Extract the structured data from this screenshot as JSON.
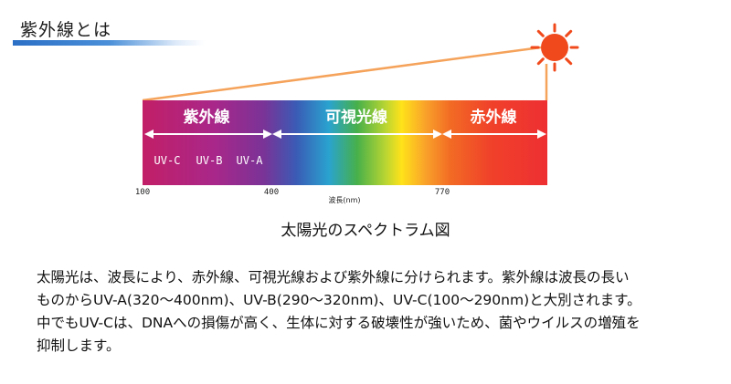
{
  "header": {
    "title": "紫外線とは"
  },
  "diagram": {
    "bands": {
      "uv": "紫外線",
      "visible": "可視光線",
      "ir": "赤外線"
    },
    "uv_types": [
      "UV-C",
      "UV-B",
      "UV-A"
    ],
    "ticks": [
      "100",
      "400",
      "770"
    ],
    "axis_label": "波長(nm)",
    "colors": {
      "sun": "#f04a1c",
      "beam": "#f5a25a",
      "uv_band": "#c2196b",
      "ir_band": "#f13a2f"
    },
    "icons": {
      "sun": "sun-icon"
    }
  },
  "caption": "太陽光のスペクトラム図",
  "description": [
    "太陽光は、波長により、赤外線、可視光線および紫外線に分けられます。紫外線は波長の長い",
    "ものからUV-A(320〜400nm)、UV-B(290〜320nm)、UV-C(100〜290nm)と大別されます。",
    "中でもUV-Cは、DNAへの損傷が高く、生体に対する破壊性が強いため、菌やウイルスの増殖を",
    "抑制します。"
  ]
}
